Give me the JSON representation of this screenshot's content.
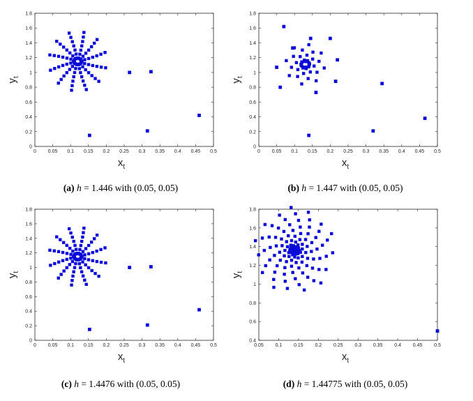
{
  "figure": {
    "marker_color": "#0b0bd8",
    "axis_color": "#262626"
  },
  "chart_data": [
    {
      "type": "scatter",
      "panel": "a",
      "caption": {
        "label": "(a)",
        "h_symbol": "h",
        "text": "= 1.446 with (0.05, 0.05)"
      },
      "xlabel": "x",
      "xlabel_sub": "t",
      "ylabel": "y",
      "ylabel_sub": "t",
      "xlim": [
        0,
        0.5
      ],
      "ylim": [
        0,
        1.8
      ],
      "xticks": [
        "0",
        "0.05",
        "0.1",
        "0.15",
        "0.2",
        "0.25",
        "0.3",
        "0.35",
        "0.4",
        "0.45",
        "0.5"
      ],
      "yticks": [
        "0",
        "0.2",
        "0.4",
        "0.6",
        "0.8",
        "1",
        "1.2",
        "1.4",
        "1.6",
        "1.8"
      ],
      "spiral": {
        "cx": 0.12,
        "cy": 1.15,
        "arms": 12,
        "points": 7,
        "r_max": 0.4,
        "twist": 1.2,
        "aspect": 0.2,
        "rot": 0.2
      },
      "x": [
        0.46,
        0.315,
        0.325,
        0.265,
        0.153
      ],
      "y": [
        0.42,
        0.21,
        1.01,
        1.0,
        0.15
      ]
    },
    {
      "type": "scatter",
      "panel": "b",
      "caption": {
        "label": "(b)",
        "h_symbol": "h",
        "text": "= 1.447 with (0.05, 0.05)"
      },
      "xlabel": "x",
      "xlabel_sub": "t",
      "ylabel": "y",
      "ylabel_sub": "t",
      "xlim": [
        0,
        0.5
      ],
      "ylim": [
        0,
        1.8
      ],
      "xticks": [
        "0",
        "0.05",
        "0.1",
        "0.15",
        "0.2",
        "0.25",
        "0.3",
        "0.35",
        "0.4",
        "0.45",
        "0.5"
      ],
      "yticks": [
        "0",
        "0.2",
        "0.4",
        "0.6",
        "0.8",
        "1",
        "1.2",
        "1.4",
        "1.6",
        "1.8"
      ],
      "spiral": {
        "cx": 0.13,
        "cy": 1.11,
        "arms": 8,
        "points": 4,
        "r_max": 0.27,
        "twist": 0.5,
        "aspect": 0.2,
        "rot": 0.6
      },
      "x": [
        0.465,
        0.345,
        0.32,
        0.14,
        0.06,
        0.07,
        0.05,
        0.2,
        0.22,
        0.215,
        0.16,
        0.145,
        0.095
      ],
      "y": [
        0.38,
        0.85,
        0.21,
        0.15,
        0.8,
        1.62,
        1.07,
        1.46,
        1.17,
        0.88,
        0.73,
        1.46,
        1.33
      ]
    },
    {
      "type": "scatter",
      "panel": "c",
      "caption": {
        "label": "(c)",
        "h_symbol": "h",
        "text": "= 1.4476 with (0.05, 0.05)"
      },
      "xlabel": "x",
      "xlabel_sub": "t",
      "ylabel": "y",
      "ylabel_sub": "t",
      "xlim": [
        0,
        0.5
      ],
      "ylim": [
        0,
        1.8
      ],
      "xticks": [
        "0",
        "0.05",
        "0.1",
        "0.15",
        "0.2",
        "0.25",
        "0.3",
        "0.35",
        "0.4",
        "0.45",
        "0.5"
      ],
      "yticks": [
        "0",
        "0.2",
        "0.4",
        "0.6",
        "0.8",
        "1",
        "1.2",
        "1.4",
        "1.6",
        "1.8"
      ],
      "spiral": {
        "cx": 0.12,
        "cy": 1.15,
        "arms": 12,
        "points": 7,
        "r_max": 0.4,
        "twist": 1.2,
        "aspect": 0.2,
        "rot": 0.2
      },
      "x": [
        0.46,
        0.315,
        0.325,
        0.265,
        0.153
      ],
      "y": [
        0.42,
        0.21,
        1.01,
        1.0,
        0.15
      ]
    },
    {
      "type": "scatter",
      "panel": "d",
      "caption": {
        "label": "(d)",
        "h_symbol": "h",
        "text": "= 1.44775 with (0.05, 0.05)"
      },
      "xlabel": "x",
      "xlabel_sub": "t",
      "ylabel": "y",
      "ylabel_sub": "t",
      "xlim": [
        0.05,
        0.5
      ],
      "ylim": [
        0.4,
        1.8
      ],
      "xticks": [
        "0.05",
        "0.1",
        "0.15",
        "0.2",
        "0.25",
        "0.3",
        "0.35",
        "0.4",
        "0.45",
        "0.5"
      ],
      "yticks": [
        "0.4",
        "0.6",
        "0.8",
        "1",
        "1.2",
        "1.4",
        "1.6",
        "1.8"
      ],
      "spiral": {
        "cx": 0.14,
        "cy": 1.36,
        "arms": 5,
        "points": 22,
        "r_max": 0.46,
        "twist": 3.2,
        "aspect": 0.22,
        "rot": 0.4
      },
      "x": [
        0.5
      ],
      "y": [
        0.5
      ]
    }
  ]
}
